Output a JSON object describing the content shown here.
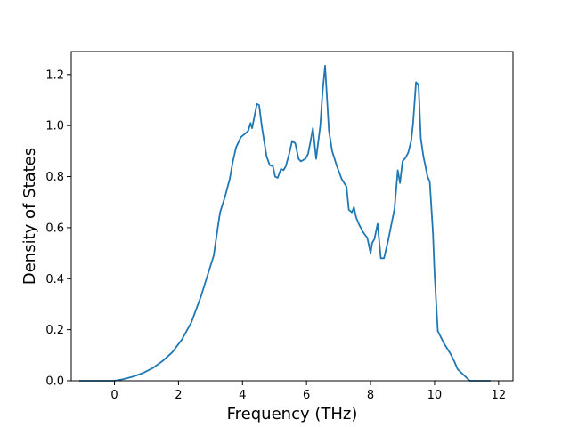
{
  "chart_data": {
    "type": "line",
    "title": "",
    "xlabel": "Frequency (THz)",
    "ylabel": "Density of States",
    "xlim": [
      -1.35,
      12.45
    ],
    "ylim": [
      0.0,
      1.29
    ],
    "xticks": [
      0,
      2,
      4,
      6,
      8,
      10,
      12
    ],
    "yticks": [
      0.0,
      0.2,
      0.4,
      0.6,
      0.8,
      1.0,
      1.2
    ],
    "xtick_labels": [
      "0",
      "2",
      "4",
      "6",
      "8",
      "10",
      "12"
    ],
    "ytick_labels": [
      "0.0",
      "0.2",
      "0.4",
      "0.6",
      "0.8",
      "1.0",
      "1.2"
    ],
    "grid": false,
    "legend": "none",
    "series": [
      {
        "color": "#1f77b4",
        "x": [
          -1.1,
          -0.6,
          0.0,
          0.3,
          0.6,
          0.9,
          1.2,
          1.5,
          1.8,
          2.1,
          2.4,
          2.7,
          2.9,
          3.1,
          3.25,
          3.3,
          3.45,
          3.6,
          3.7,
          3.8,
          3.95,
          4.1,
          4.18,
          4.25,
          4.3,
          4.45,
          4.52,
          4.6,
          4.75,
          4.85,
          4.95,
          5.02,
          5.1,
          5.2,
          5.28,
          5.35,
          5.45,
          5.55,
          5.65,
          5.75,
          5.82,
          5.9,
          5.97,
          6.05,
          6.12,
          6.2,
          6.3,
          6.43,
          6.5,
          6.58,
          6.7,
          6.8,
          6.95,
          7.1,
          7.25,
          7.32,
          7.42,
          7.48,
          7.55,
          7.65,
          7.78,
          7.9,
          8.0,
          8.05,
          8.12,
          8.22,
          8.32,
          8.42,
          8.55,
          8.75,
          8.85,
          8.92,
          9.0,
          9.1,
          9.18,
          9.27,
          9.33,
          9.42,
          9.5,
          9.57,
          9.65,
          9.78,
          9.85,
          9.95,
          10.0,
          10.1,
          10.3,
          10.5,
          10.62,
          10.72,
          11.1,
          11.75
        ],
        "y": [
          0.0,
          0.0,
          0.0,
          0.007,
          0.017,
          0.031,
          0.05,
          0.077,
          0.111,
          0.16,
          0.228,
          0.33,
          0.41,
          0.49,
          0.62,
          0.66,
          0.72,
          0.79,
          0.86,
          0.915,
          0.955,
          0.97,
          0.98,
          1.01,
          0.99,
          1.085,
          1.08,
          1.0,
          0.88,
          0.845,
          0.84,
          0.8,
          0.795,
          0.83,
          0.825,
          0.84,
          0.885,
          0.94,
          0.93,
          0.87,
          0.86,
          0.865,
          0.87,
          0.89,
          0.935,
          0.99,
          0.87,
          1.0,
          1.13,
          1.235,
          0.98,
          0.9,
          0.84,
          0.79,
          0.76,
          0.67,
          0.66,
          0.68,
          0.64,
          0.61,
          0.58,
          0.56,
          0.5,
          0.54,
          0.555,
          0.615,
          0.48,
          0.48,
          0.55,
          0.675,
          0.825,
          0.775,
          0.86,
          0.875,
          0.895,
          0.94,
          1.01,
          1.17,
          1.16,
          0.95,
          0.88,
          0.8,
          0.78,
          0.58,
          0.42,
          0.195,
          0.145,
          0.105,
          0.075,
          0.045,
          0.0,
          0.0
        ]
      }
    ]
  }
}
